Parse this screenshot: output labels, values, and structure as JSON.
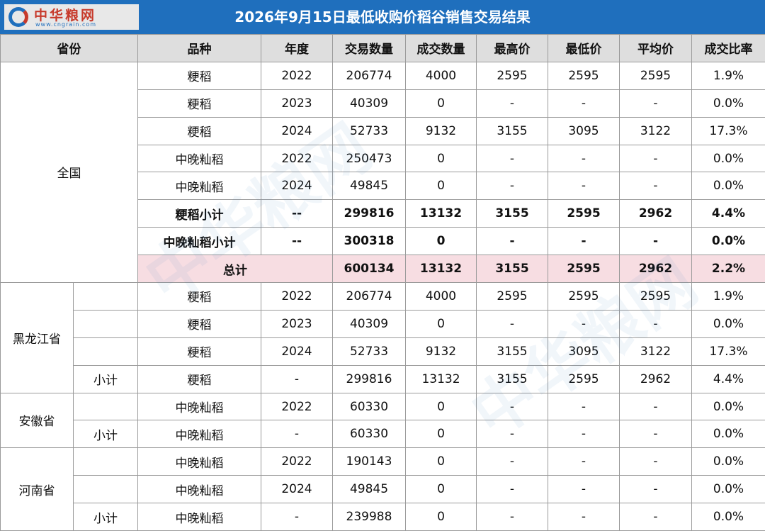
{
  "logo": {
    "name": "中华粮网",
    "url": "www.cngrain.com"
  },
  "title": "2026年9月15日最低收购价稻谷销售交易结果",
  "headers": [
    "省份",
    "品种",
    "年度",
    "交易数量",
    "成交数量",
    "最高价",
    "最低价",
    "平均价",
    "成交比率"
  ],
  "national": {
    "province": "全国",
    "rows": [
      [
        "粳稻",
        "2022",
        "206774",
        "4000",
        "2595",
        "2595",
        "2595",
        "1.9%"
      ],
      [
        "粳稻",
        "2023",
        "40309",
        "0",
        "-",
        "-",
        "-",
        "0.0%"
      ],
      [
        "粳稻",
        "2024",
        "52733",
        "9132",
        "3155",
        "3095",
        "3122",
        "17.3%"
      ],
      [
        "中晚籼稻",
        "2022",
        "250473",
        "0",
        "-",
        "-",
        "-",
        "0.0%"
      ],
      [
        "中晚籼稻",
        "2024",
        "49845",
        "0",
        "-",
        "-",
        "-",
        "0.0%"
      ]
    ],
    "subtotals": [
      [
        "粳稻小计",
        "--",
        "299816",
        "13132",
        "3155",
        "2595",
        "2962",
        "4.4%"
      ],
      [
        "中晚籼稻小计",
        "--",
        "300318",
        "0",
        "-",
        "-",
        "-",
        "0.0%"
      ]
    ],
    "total": [
      "总计",
      "600134",
      "13132",
      "3155",
      "2595",
      "2962",
      "2.2%"
    ]
  },
  "heilongjiang": {
    "province": "黑龙江省",
    "rows": [
      [
        "粳稻",
        "2022",
        "206774",
        "4000",
        "2595",
        "2595",
        "2595",
        "1.9%"
      ],
      [
        "粳稻",
        "2023",
        "40309",
        "0",
        "-",
        "-",
        "-",
        "0.0%"
      ],
      [
        "粳稻",
        "2024",
        "52733",
        "9132",
        "3155",
        "3095",
        "3122",
        "17.3%"
      ]
    ],
    "subtotal": [
      "小计",
      "粳稻",
      "-",
      "299816",
      "13132",
      "3155",
      "2595",
      "2962",
      "4.4%"
    ]
  },
  "anhui": {
    "province": "安徽省",
    "rows": [
      [
        "中晚籼稻",
        "2022",
        "60330",
        "0",
        "-",
        "-",
        "-",
        "0.0%"
      ]
    ],
    "subtotal": [
      "小计",
      "中晚籼稻",
      "-",
      "60330",
      "0",
      "-",
      "-",
      "-",
      "0.0%"
    ]
  },
  "henan": {
    "province": "河南省",
    "rows": [
      [
        "中晚籼稻",
        "2022",
        "190143",
        "0",
        "-",
        "-",
        "-",
        "0.0%"
      ],
      [
        "中晚籼稻",
        "2024",
        "49845",
        "0",
        "-",
        "-",
        "-",
        "0.0%"
      ]
    ],
    "subtotal": [
      "小计",
      "中晚籼稻",
      "-",
      "239988",
      "0",
      "-",
      "-",
      "-",
      "0.0%"
    ]
  },
  "colors": {
    "title_bg": "#1f6fbd",
    "header_bg": "#dedede",
    "total_bg": "#f7dde2",
    "logo_red": "#c73a2b"
  }
}
